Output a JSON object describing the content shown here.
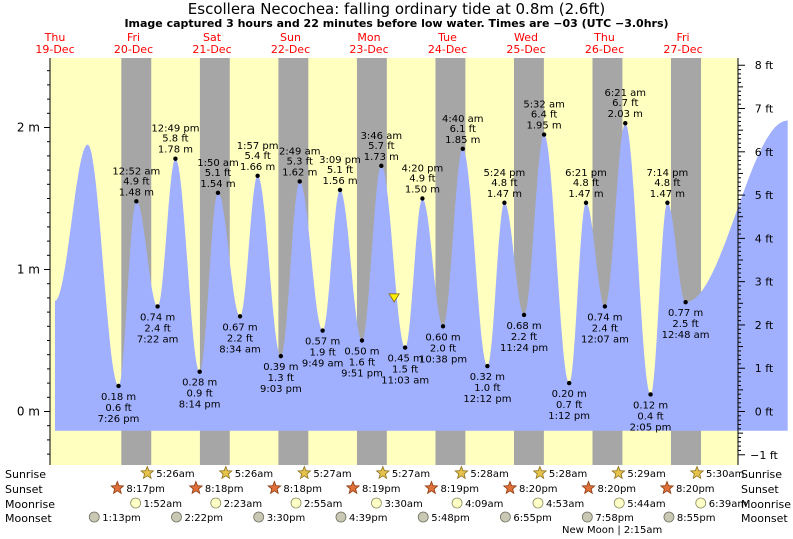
{
  "header": {
    "title": "Escollera Necochea: falling  ordinary tide at 0.8m (2.6ft)",
    "subtitle": "Image captured 3 hours and 22 minutes before low water. Times are −03 (UTC −3.0hrs)"
  },
  "chart_data": {
    "type": "area",
    "title": "Escollera Necochea: falling  ordinary tide at 0.8m (2.6ft)",
    "x_range_hours": [
      -24,
      212
    ],
    "ylim_m": [
      -0.35,
      2.45
    ],
    "left_ticks": [
      {
        "v": 0,
        "label": "0 m"
      },
      {
        "v": 1,
        "label": "1 m"
      },
      {
        "v": 2,
        "label": "2 m"
      }
    ],
    "right_ticks": [
      {
        "v": -1,
        "label": "−1 ft"
      },
      {
        "v": 0,
        "label": "0 ft"
      },
      {
        "v": 1,
        "label": "1 ft"
      },
      {
        "v": 2,
        "label": "2 ft"
      },
      {
        "v": 3,
        "label": "3 ft"
      },
      {
        "v": 4,
        "label": "4 ft"
      },
      {
        "v": 5,
        "label": "5 ft"
      },
      {
        "v": 6,
        "label": "6 ft"
      },
      {
        "v": 7,
        "label": "7 ft"
      },
      {
        "v": 8,
        "label": "8 ft"
      }
    ],
    "days": [
      {
        "dow": "Thu",
        "date": "19‑Dec",
        "h": -24
      },
      {
        "dow": "Fri",
        "date": "20‑Dec",
        "h": 0
      },
      {
        "dow": "Sat",
        "date": "21‑Dec",
        "h": 24
      },
      {
        "dow": "Sun",
        "date": "22‑Dec",
        "h": 48
      },
      {
        "dow": "Mon",
        "date": "23‑Dec",
        "h": 72
      },
      {
        "dow": "Tue",
        "date": "24‑Dec",
        "h": 96
      },
      {
        "dow": "Wed",
        "date": "25‑Dec",
        "h": 120
      },
      {
        "dow": "Thu",
        "date": "26‑Dec",
        "h": 144
      },
      {
        "dow": "Fri",
        "date": "27‑Dec",
        "h": 168
      }
    ],
    "nights": [
      [
        -3.72,
        5.43
      ],
      [
        20.3,
        29.43
      ],
      [
        44.3,
        53.45
      ],
      [
        68.32,
        77.45
      ],
      [
        92.32,
        101.47
      ],
      [
        116.33,
        125.47
      ],
      [
        140.33,
        149.48
      ],
      [
        164.33,
        173.5
      ]
    ],
    "curve_start": {
      "h": -24,
      "v": 0.78
    },
    "curve_end": {
      "h": 200,
      "v": 2.05
    },
    "pre_peak": {
      "h": -14.0,
      "v": 1.88
    },
    "extremes": [
      {
        "h": -4.57,
        "v": 0.18,
        "m": "0.18 m",
        "ft": "0.6 ft",
        "time": "7:26 pm",
        "type": "low"
      },
      {
        "h": 0.87,
        "v": 1.48,
        "m": "1.48 m",
        "ft": "4.9 ft",
        "time": "12:52 am",
        "type": "high"
      },
      {
        "h": 7.37,
        "v": 0.74,
        "m": "0.74 m",
        "ft": "2.4 ft",
        "time": "7:22 am",
        "type": "low"
      },
      {
        "h": 12.82,
        "v": 1.78,
        "m": "1.78 m",
        "ft": "5.8 ft",
        "time": "12:49 pm",
        "type": "high"
      },
      {
        "h": 20.23,
        "v": 0.28,
        "m": "0.28 m",
        "ft": "0.9 ft",
        "time": "8:14 pm",
        "type": "low"
      },
      {
        "h": 25.83,
        "v": 1.54,
        "m": "1.54 m",
        "ft": "5.1 ft",
        "time": "1:50 am",
        "type": "high"
      },
      {
        "h": 32.57,
        "v": 0.67,
        "m": "0.67 m",
        "ft": "2.2 ft",
        "time": "8:34 am",
        "type": "low"
      },
      {
        "h": 37.95,
        "v": 1.66,
        "m": "1.66 m",
        "ft": "5.4 ft",
        "time": "1:57 pm",
        "type": "high"
      },
      {
        "h": 45.05,
        "v": 0.39,
        "m": "0.39 m",
        "ft": "1.3 ft",
        "time": "9:03 pm",
        "type": "low"
      },
      {
        "h": 50.82,
        "v": 1.62,
        "m": "1.62 m",
        "ft": "5.3 ft",
        "time": "2:49 am",
        "type": "high"
      },
      {
        "h": 57.82,
        "v": 0.57,
        "m": "0.57 m",
        "ft": "1.9 ft",
        "time": "9:49 am",
        "type": "low"
      },
      {
        "h": 63.15,
        "v": 1.56,
        "m": "1.56 m",
        "ft": "5.1 ft",
        "time": "3:09 pm",
        "type": "high"
      },
      {
        "h": 69.85,
        "v": 0.5,
        "m": "0.50 m",
        "ft": "1.6 ft",
        "time": "9:51 pm",
        "type": "low"
      },
      {
        "h": 75.77,
        "v": 1.73,
        "m": "1.73 m",
        "ft": "5.7 ft",
        "time": "3:46 am",
        "type": "high"
      },
      {
        "h": 83.05,
        "v": 0.45,
        "m": "0.45 m",
        "ft": "1.5 ft",
        "time": "11:03 am",
        "type": "low"
      },
      {
        "h": 88.33,
        "v": 1.5,
        "m": "1.50 m",
        "ft": "4.9 ft",
        "time": "4:20 pm",
        "type": "high"
      },
      {
        "h": 94.63,
        "v": 0.6,
        "m": "0.60 m",
        "ft": "2.0 ft",
        "time": "10:38 pm",
        "type": "low"
      },
      {
        "h": 100.67,
        "v": 1.85,
        "m": "1.85 m",
        "ft": "6.1 ft",
        "time": "4:40 am",
        "type": "high"
      },
      {
        "h": 108.2,
        "v": 0.32,
        "m": "0.32 m",
        "ft": "1.0 ft",
        "time": "12:12 pm",
        "type": "low"
      },
      {
        "h": 113.4,
        "v": 1.47,
        "m": "1.47 m",
        "ft": "4.8 ft",
        "time": "5:24 pm",
        "type": "high"
      },
      {
        "h": 119.4,
        "v": 0.68,
        "m": "0.68 m",
        "ft": "2.2 ft",
        "time": "11:24 pm",
        "type": "low"
      },
      {
        "h": 125.53,
        "v": 1.95,
        "m": "1.95 m",
        "ft": "6.4 ft",
        "time": "5:32 am",
        "type": "high"
      },
      {
        "h": 133.2,
        "v": 0.2,
        "m": "0.20 m",
        "ft": "0.7 ft",
        "time": "1:12 pm",
        "type": "low"
      },
      {
        "h": 138.35,
        "v": 1.47,
        "m": "1.47 m",
        "ft": "4.8 ft",
        "time": "6:21 pm",
        "type": "high"
      },
      {
        "h": 144.12,
        "v": 0.74,
        "m": "0.74 m",
        "ft": "2.4 ft",
        "time": "12:07 am",
        "type": "low"
      },
      {
        "h": 150.35,
        "v": 2.03,
        "m": "2.03 m",
        "ft": "6.7 ft",
        "time": "6:21 am",
        "type": "high"
      },
      {
        "h": 158.08,
        "v": 0.12,
        "m": "0.12 m",
        "ft": "0.4 ft",
        "time": "2:05 pm",
        "type": "low"
      },
      {
        "h": 163.23,
        "v": 1.47,
        "m": "1.47 m",
        "ft": "4.8 ft",
        "time": "7:14 pm",
        "type": "high"
      },
      {
        "h": 168.8,
        "v": 0.77,
        "m": "0.77 m",
        "ft": "2.5 ft",
        "time": "12:48 am",
        "type": "low"
      }
    ],
    "current": {
      "h": 79.7,
      "v": 0.8
    },
    "colors": {
      "day": "#ffffc0",
      "night": "#a6a6a6",
      "water": "#a0b0ff",
      "title_red": "#ff0000",
      "marker": "#ffee00"
    }
  },
  "astro": {
    "labels": {
      "sunrise": "Sunrise",
      "sunset": "Sunset",
      "moonrise": "Moonrise",
      "moonset": "Moonset"
    },
    "sunrise": [
      {
        "h": 5.43,
        "t": "5:26am"
      },
      {
        "h": 29.43,
        "t": "5:26am"
      },
      {
        "h": 53.45,
        "t": "5:27am"
      },
      {
        "h": 77.45,
        "t": "5:27am"
      },
      {
        "h": 101.47,
        "t": "5:28am"
      },
      {
        "h": 125.47,
        "t": "5:28am"
      },
      {
        "h": 149.48,
        "t": "5:29am"
      },
      {
        "h": 173.5,
        "t": "5:30am"
      }
    ],
    "sunset": [
      {
        "h": -3.72,
        "t": "8:17pm"
      },
      {
        "h": 20.3,
        "t": "8:18pm"
      },
      {
        "h": 44.3,
        "t": "8:18pm"
      },
      {
        "h": 68.32,
        "t": "8:19pm"
      },
      {
        "h": 92.32,
        "t": "8:19pm"
      },
      {
        "h": 116.33,
        "t": "8:20pm"
      },
      {
        "h": 140.33,
        "t": "8:20pm"
      },
      {
        "h": 164.33,
        "t": "8:20pm"
      }
    ],
    "moonrise": [
      {
        "h": 1.87,
        "t": "1:52am"
      },
      {
        "h": 26.38,
        "t": "2:23am"
      },
      {
        "h": 50.92,
        "t": "2:55am"
      },
      {
        "h": 75.5,
        "t": "3:30am"
      },
      {
        "h": 100.15,
        "t": "4:09am"
      },
      {
        "h": 124.88,
        "t": "4:53am"
      },
      {
        "h": 149.73,
        "t": "5:44am"
      },
      {
        "h": 174.65,
        "t": "6:39am"
      }
    ],
    "moonset": [
      {
        "h": -10.78,
        "t": "1:13pm"
      },
      {
        "h": 14.37,
        "t": "2:22pm"
      },
      {
        "h": 39.5,
        "t": "3:30pm"
      },
      {
        "h": 64.65,
        "t": "4:39pm"
      },
      {
        "h": 89.8,
        "t": "5:48pm"
      },
      {
        "h": 114.92,
        "t": "6:55pm"
      },
      {
        "h": 139.97,
        "t": "7:58pm"
      },
      {
        "h": 164.92,
        "t": "8:55pm"
      }
    ],
    "moon_phase_note": "New Moon | 2:15am"
  }
}
